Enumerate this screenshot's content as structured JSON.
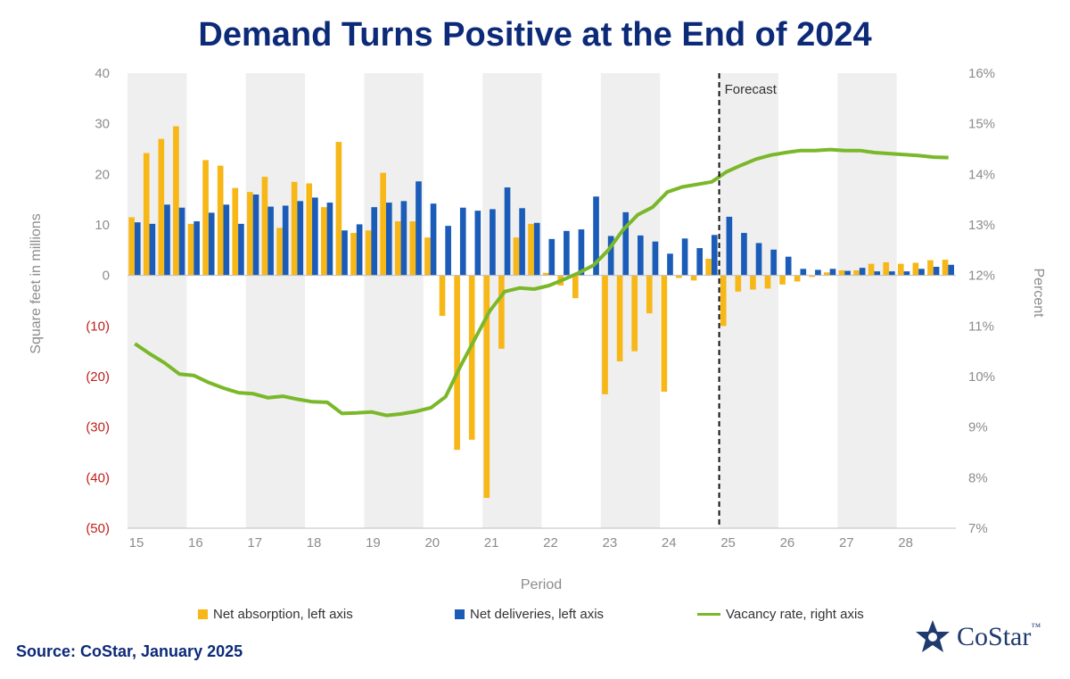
{
  "title": "Demand Turns Positive at the End of 2024",
  "source": "Source: CoStar, January 2025",
  "logo_text": "CoStar",
  "logo_tm": "™",
  "colors": {
    "absorption": "#f6b717",
    "deliveries": "#1a5cb8",
    "vacancy": "#7ab82a",
    "title": "#0c2a78",
    "negative_tick": "#c0201a",
    "band": "#efefef"
  },
  "chart_data": {
    "type": "bar",
    "xlabel": "Period",
    "ylabel": "Square feet in millions",
    "y2label": "Percent",
    "ylim": [
      -50,
      40
    ],
    "y2lim": [
      7,
      16
    ],
    "y_ticks": [
      "40",
      "30",
      "20",
      "10",
      "0",
      "(10)",
      "(20)",
      "(30)",
      "(40)",
      "(50)"
    ],
    "y2_ticks": [
      "16%",
      "15%",
      "14%",
      "13%",
      "12%",
      "11%",
      "10%",
      "9%",
      "8%",
      "7%"
    ],
    "x_ticks": [
      "15",
      "16",
      "17",
      "18",
      "19",
      "20",
      "21",
      "22",
      "23",
      "24",
      "25",
      "26",
      "27",
      "28"
    ],
    "forecast_label": "Forecast",
    "forecast_start_index": 40,
    "grid": false,
    "alternating_year_bands": true,
    "legend_position": "bottom",
    "x": [
      "15 Q1",
      "15 Q2",
      "15 Q3",
      "15 Q4",
      "16 Q1",
      "16 Q2",
      "16 Q3",
      "16 Q4",
      "17 Q1",
      "17 Q2",
      "17 Q3",
      "17 Q4",
      "18 Q1",
      "18 Q2",
      "18 Q3",
      "18 Q4",
      "19 Q1",
      "19 Q2",
      "19 Q3",
      "19 Q4",
      "20 Q1",
      "20 Q2",
      "20 Q3",
      "20 Q4",
      "21 Q1",
      "21 Q2",
      "21 Q3",
      "21 Q4",
      "22 Q1",
      "22 Q2",
      "22 Q3",
      "22 Q4",
      "23 Q1",
      "23 Q2",
      "23 Q3",
      "23 Q4",
      "24 Q1",
      "24 Q2",
      "24 Q3",
      "24 Q4",
      "25 Q1",
      "25 Q2",
      "25 Q3",
      "25 Q4",
      "26 Q1",
      "26 Q2",
      "26 Q3",
      "26 Q4",
      "27 Q1",
      "27 Q2",
      "27 Q3",
      "27 Q4",
      "28 Q1",
      "28 Q2",
      "28 Q3",
      "28 Q4"
    ],
    "series": [
      {
        "name": "Net absorption, left axis",
        "type": "bar",
        "values": [
          11.5,
          24.2,
          27,
          29.5,
          10.2,
          22.8,
          21.7,
          17.3,
          16.5,
          19.5,
          9.4,
          18.5,
          18.2,
          13.5,
          26.4,
          8.4,
          8.9,
          20.3,
          10.7,
          10.7,
          7.5,
          -8,
          -34.5,
          -32.5,
          -44,
          -14.5,
          7.5,
          10.2,
          0.5,
          -2,
          -4.5,
          0,
          -23.5,
          -17,
          -15,
          -7.5,
          -23,
          -0.5,
          -1,
          3.3,
          -10,
          -3.2,
          -2.8,
          -2.6,
          -1.8,
          -1.2,
          -0.3,
          0.6,
          1.0,
          1.0,
          2.3,
          2.6,
          2.3,
          2.5,
          3.0,
          3.1
        ]
      },
      {
        "name": "Net deliveries, left axis",
        "type": "bar",
        "values": [
          10.5,
          10.2,
          14,
          13.4,
          10.7,
          12.4,
          14,
          10.2,
          16,
          13.6,
          13.8,
          14.7,
          15.4,
          14.4,
          8.9,
          10.1,
          13.5,
          14.4,
          14.7,
          18.6,
          14.2,
          9.8,
          13.4,
          12.8,
          13.1,
          17.4,
          13.3,
          10.4,
          7.2,
          8.8,
          9.1,
          15.6,
          7.8,
          12.5,
          7.9,
          6.7,
          4.3,
          7.3,
          5.4,
          8.0,
          11.6,
          8.4,
          6.4,
          5.1,
          3.7,
          1.3,
          1.1,
          1.3,
          0.9,
          1.5,
          0.8,
          0.8,
          0.8,
          1.3,
          1.7,
          2.1
        ]
      },
      {
        "name": "Vacancy rate, right axis",
        "type": "line",
        "values": [
          10.65,
          10.45,
          10.27,
          10.05,
          10.02,
          9.88,
          9.77,
          9.68,
          9.66,
          9.58,
          9.61,
          9.55,
          9.5,
          9.49,
          9.27,
          9.28,
          9.3,
          9.23,
          9.26,
          9.31,
          9.38,
          9.6,
          10.2,
          10.75,
          11.3,
          11.68,
          11.75,
          11.73,
          11.8,
          11.92,
          12.05,
          12.2,
          12.5,
          12.9,
          13.2,
          13.35,
          13.65,
          13.75,
          13.8,
          13.85,
          14.05,
          14.18,
          14.3,
          14.38,
          14.43,
          14.47,
          14.47,
          14.49,
          14.47,
          14.47,
          14.43,
          14.41,
          14.39,
          14.37,
          14.34,
          14.33
        ]
      }
    ]
  }
}
